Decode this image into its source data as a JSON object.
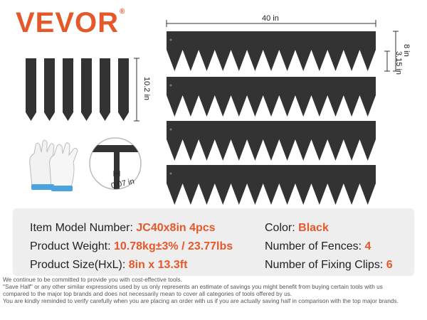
{
  "brand": {
    "name": "VEVOR",
    "mark": "®"
  },
  "dimensions": {
    "length": "40 in",
    "height": "8 in",
    "spike": "3.15 in",
    "stake_length": "10.2 in",
    "thickness": "0.07 in"
  },
  "specs": {
    "model_label": "Item Model Number:",
    "model_value": "JC40x8in 4pcs",
    "weight_label": "Product Weight:",
    "weight_value": "10.78kg±3% / 23.77lbs",
    "size_label": "Product Size(HxL):",
    "size_value": "8in x 13.3ft",
    "color_label": "Color:",
    "color_value": "Black",
    "fences_label": "Number of Fences:",
    "fences_value": "4",
    "clips_label": "Number of Fixing Clips:",
    "clips_value": "6"
  },
  "disclaimer": [
    "We continue to be committed to provide you with cost-effective tools.",
    "\"Save Half\" or any other similar expressions used by us only represents an estimate of savings you might benefit from buying certain tools with us",
    "compared to the major top brands and does not necessarily mean to cover all categories of tools offered by us.",
    "You are kindly reminded to verify carefully when you are placing an order with us if you are actually saving half in comparison with the top major brands."
  ],
  "colors": {
    "accent": "#e4582a",
    "product": "#333333",
    "panel": "#eeeeee"
  }
}
